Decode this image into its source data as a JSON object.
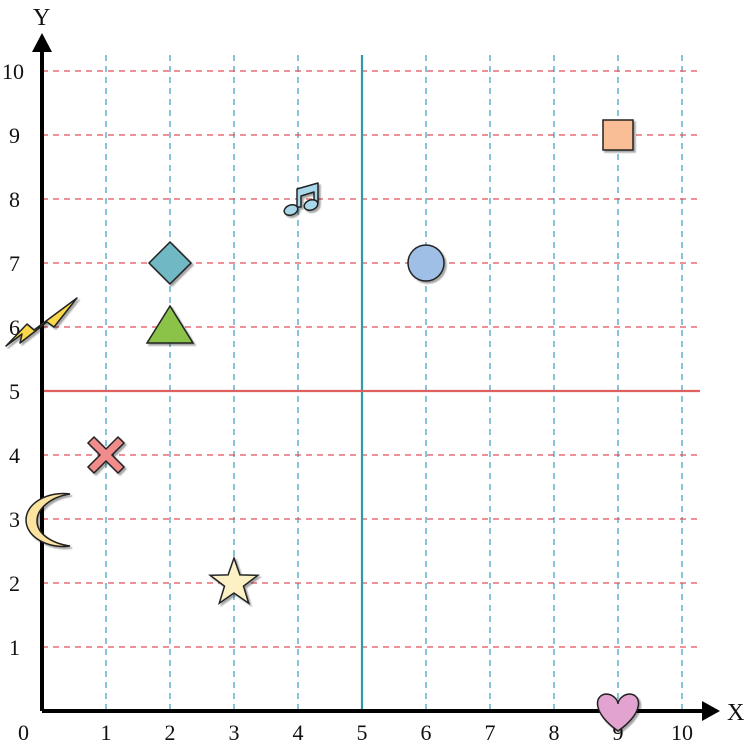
{
  "chart_data": {
    "type": "scatter",
    "xlabel": "X",
    "ylabel": "Y",
    "origin_label": "0",
    "xlim": [
      0,
      10
    ],
    "ylim": [
      0,
      10
    ],
    "xticks": [
      1,
      2,
      3,
      4,
      5,
      6,
      7,
      8,
      9,
      10
    ],
    "yticks": [
      1,
      2,
      3,
      4,
      5,
      6,
      7,
      8,
      9,
      10
    ],
    "grid": true,
    "grid_colors": {
      "vertical": "#4aa3c0",
      "horizontal": "#e0505a"
    },
    "reference_lines": [
      {
        "axis": "x",
        "value": 5,
        "color": "#2f9aa8"
      },
      {
        "axis": "y",
        "value": 5,
        "color": "#e06060"
      }
    ],
    "points": [
      {
        "shape": "square",
        "x": 9,
        "y": 9,
        "color": "#f9be95"
      },
      {
        "shape": "music-note",
        "x": 4,
        "y": 8,
        "color": "#a8d8ea"
      },
      {
        "shape": "diamond",
        "x": 2,
        "y": 7,
        "color": "#6fb9c4"
      },
      {
        "shape": "circle",
        "x": 6,
        "y": 7,
        "color": "#9fbfe6"
      },
      {
        "shape": "triangle",
        "x": 2,
        "y": 6,
        "color": "#8bc34a"
      },
      {
        "shape": "lightning",
        "x": 0,
        "y": 6,
        "color": "#f9d84a"
      },
      {
        "shape": "cross",
        "x": 1,
        "y": 4,
        "color": "#f08c8c"
      },
      {
        "shape": "moon",
        "x": 0,
        "y": 3,
        "color": "#fbe3a0"
      },
      {
        "shape": "star",
        "x": 3,
        "y": 2,
        "color": "#fcf1c4"
      },
      {
        "shape": "heart",
        "x": 9,
        "y": 0,
        "color": "#e3a3d0"
      }
    ]
  }
}
